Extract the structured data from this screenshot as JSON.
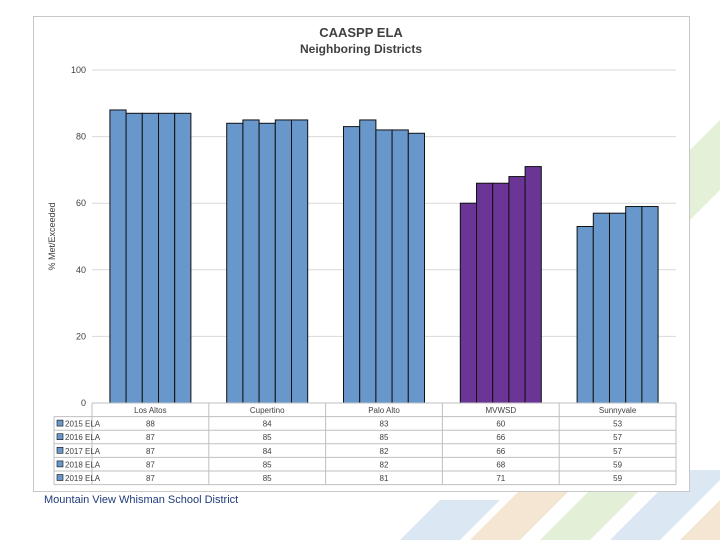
{
  "chart_data": {
    "type": "bar",
    "title": "CAASPP ELA",
    "subtitle": "Neighboring Districts",
    "xlabel": "",
    "ylabel": "% Met/Exceeded",
    "ylim": [
      0,
      100
    ],
    "yticks": [
      0,
      20,
      40,
      60,
      80,
      100
    ],
    "grid": true,
    "categories": [
      "Los Altos",
      "Cupertino",
      "Palo Alto",
      "MVWSD",
      "Sunnyvale"
    ],
    "highlight_category": "MVWSD",
    "colors": {
      "default": "#6897cc",
      "highlight": "#6a3596",
      "border": "#111111",
      "grid": "#d9d9d9"
    },
    "series": [
      {
        "name": "2015 ELA",
        "values": [
          88,
          84,
          83,
          60,
          53
        ]
      },
      {
        "name": "2016 ELA",
        "values": [
          87,
          85,
          85,
          66,
          57
        ]
      },
      {
        "name": "2017 ELA",
        "values": [
          87,
          84,
          82,
          66,
          57
        ]
      },
      {
        "name": "2018 ELA",
        "values": [
          87,
          85,
          82,
          68,
          59
        ]
      },
      {
        "name": "2019 ELA",
        "values": [
          87,
          85,
          81,
          71,
          59
        ]
      }
    ]
  },
  "footer": {
    "text": "Mountain View Whisman School District"
  }
}
